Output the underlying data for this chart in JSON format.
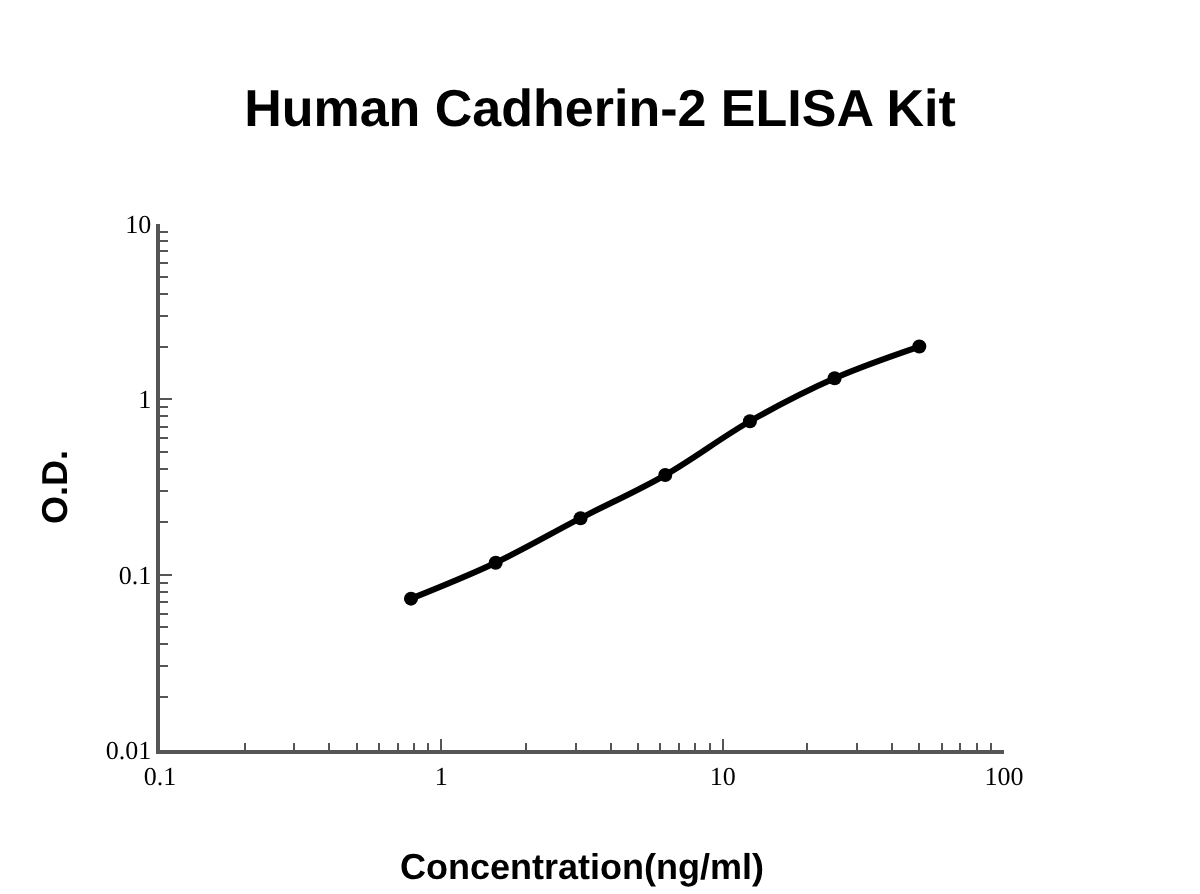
{
  "chart_data": {
    "type": "line",
    "title": "Human Cadherin-2 ELISA Kit",
    "xlabel": "Concentration(ng/ml)",
    "ylabel": "O.D.",
    "x": [
      0.78,
      1.56,
      3.125,
      6.25,
      12.5,
      25,
      50
    ],
    "series": [
      {
        "color": "#000000",
        "values": [
          0.073,
          0.117,
          0.21,
          0.37,
          0.75,
          1.32,
          2.0
        ]
      }
    ],
    "log": "xy",
    "xlim": [
      0.1,
      100
    ],
    "ylim": [
      0.01,
      10
    ],
    "xticks": [
      0.1,
      1,
      10,
      100
    ],
    "yticks": [
      0.01,
      0.1,
      1,
      10
    ],
    "grid": false,
    "marker": "circle",
    "line_style": "solid"
  }
}
